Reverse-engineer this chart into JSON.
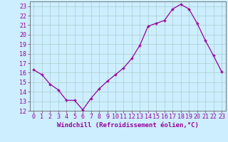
{
  "x": [
    0,
    1,
    2,
    3,
    4,
    5,
    6,
    7,
    8,
    9,
    10,
    11,
    12,
    13,
    14,
    15,
    16,
    17,
    18,
    19,
    20,
    21,
    22,
    23
  ],
  "y": [
    16.3,
    15.8,
    14.8,
    14.2,
    13.1,
    13.1,
    12.1,
    13.3,
    14.3,
    15.1,
    15.8,
    16.5,
    17.5,
    18.9,
    20.9,
    21.2,
    21.5,
    22.7,
    23.2,
    22.7,
    21.2,
    19.4,
    17.8,
    16.1
  ],
  "line_color": "#990099",
  "marker": "+",
  "bg_color": "#cceeff",
  "grid_color": "#aacccc",
  "xlabel": "Windchill (Refroidissement éolien,°C)",
  "xlabel_color": "#990099",
  "ylim": [
    12,
    23.5
  ],
  "xlim": [
    -0.5,
    23.5
  ],
  "yticks": [
    12,
    13,
    14,
    15,
    16,
    17,
    18,
    19,
    20,
    21,
    22,
    23
  ],
  "xticks": [
    0,
    1,
    2,
    3,
    4,
    5,
    6,
    7,
    8,
    9,
    10,
    11,
    12,
    13,
    14,
    15,
    16,
    17,
    18,
    19,
    20,
    21,
    22,
    23
  ],
  "tick_color": "#990099",
  "spine_color": "#666666",
  "font_size_label": 6.5,
  "font_size_tick": 6.0,
  "marker_size": 3.5,
  "line_width": 0.9
}
